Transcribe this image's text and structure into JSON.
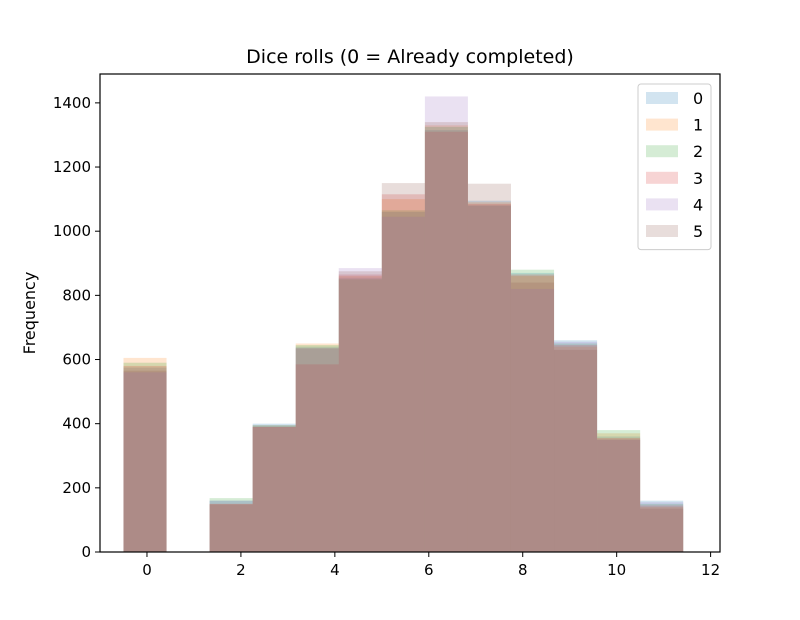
{
  "chart_data": {
    "type": "bar",
    "title": "Dice rolls (0 = Already completed)",
    "xlabel": "",
    "ylabel": "Frequency",
    "xlim": [
      -1,
      12.2
    ],
    "ylim": [
      0,
      1490
    ],
    "xticks": [
      0,
      2,
      4,
      6,
      8,
      10,
      12
    ],
    "yticks": [
      0,
      200,
      400,
      600,
      800,
      1000,
      1200,
      1400
    ],
    "grid": false,
    "legend_position": "top-right",
    "bin_edges": [
      -0.5,
      0.4167,
      1.3333,
      2.25,
      3.1667,
      4.0833,
      5.0,
      5.9167,
      6.8333,
      7.75,
      8.6667,
      9.5833,
      10.5,
      11.4167
    ],
    "series": [
      {
        "name": "0",
        "color": "#1f77b4",
        "values": [
          575,
          0,
          160,
          400,
          640,
          855,
          1060,
          1315,
          1095,
          870,
          660,
          360,
          160
        ]
      },
      {
        "name": "1",
        "color": "#ff7f0e",
        "values": [
          605,
          0,
          150,
          390,
          650,
          860,
          1100,
          1330,
          1090,
          860,
          640,
          370,
          140
        ]
      },
      {
        "name": "2",
        "color": "#2ca02c",
        "values": [
          590,
          0,
          168,
          395,
          645,
          850,
          1065,
          1325,
          1080,
          880,
          650,
          380,
          150
        ]
      },
      {
        "name": "3",
        "color": "#d62728",
        "values": [
          580,
          0,
          150,
          390,
          585,
          865,
          1115,
          1310,
          1085,
          865,
          645,
          355,
          145
        ]
      },
      {
        "name": "4",
        "color": "#9467bd",
        "values": [
          560,
          0,
          160,
          390,
          635,
          885,
          1045,
          1420,
          1080,
          820,
          655,
          350,
          155
        ]
      },
      {
        "name": "5",
        "color": "#8c564b",
        "values": [
          565,
          0,
          148,
          395,
          635,
          875,
          1150,
          1340,
          1148,
          840,
          630,
          350,
          135
        ]
      }
    ]
  }
}
